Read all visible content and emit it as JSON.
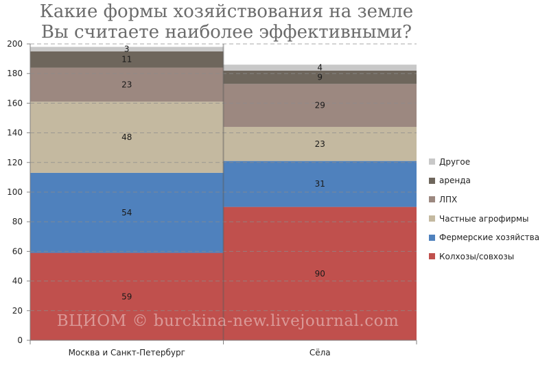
{
  "chart_data": {
    "type": "bar",
    "stacked": true,
    "title": [
      "Какие формы хозяйствования на земле",
      "Вы считаете наиболее эффективными?"
    ],
    "categories": [
      "Москва и Санкт-Петербург",
      "Сёла"
    ],
    "series": [
      {
        "name": "Колхозы/совхозы",
        "values": [
          59,
          90
        ],
        "color": "#c0504d"
      },
      {
        "name": "Фермерские хозяйства",
        "values": [
          54,
          31
        ],
        "color": "#4f81bd"
      },
      {
        "name": "Частные агрофирмы",
        "values": [
          48,
          23
        ],
        "color": "#c4b9a0"
      },
      {
        "name": "ЛПХ",
        "values": [
          23,
          29
        ],
        "color": "#9c8880"
      },
      {
        "name": "аренда",
        "values": [
          11,
          9
        ],
        "color": "#6e665c"
      },
      {
        "name": "Другое",
        "values": [
          3,
          4
        ],
        "color": "#c8c8c8"
      }
    ],
    "ylim": [
      0,
      200
    ],
    "yticks": [
      0,
      20,
      40,
      60,
      80,
      100,
      120,
      140,
      160,
      180,
      200
    ],
    "grid": true,
    "legend_position": "right"
  },
  "watermark": "ВЦИОМ © burckina-new.livejournal.com"
}
